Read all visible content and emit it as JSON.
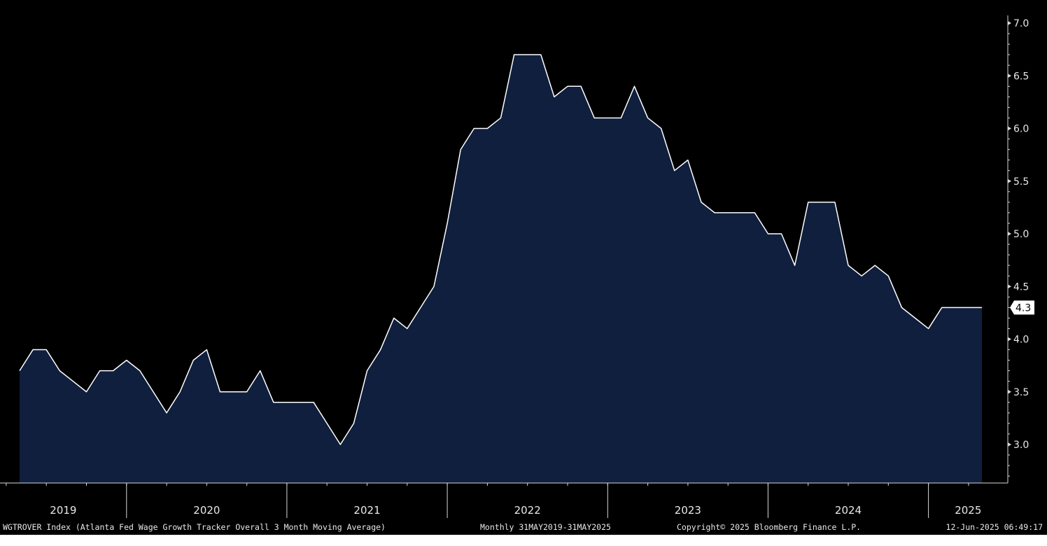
{
  "colors": {
    "background": "#000000",
    "area_fill": "#0f1f3d",
    "line": "#ffffff",
    "axis": "#d8d8d8",
    "text": "#e8e8e8",
    "last_value_tag": "#ffffff"
  },
  "footer": {
    "index_description": "WGTROVER Index (Atlanta Fed Wage Growth Tracker Overall 3 Month Moving Average)",
    "frequency_range": "Monthly 31MAY2019-31MAY2025",
    "copyright": "Copyright© 2025 Bloomberg Finance L.P.",
    "timestamp": "12-Jun-2025 06:49:17"
  },
  "chart_data": {
    "type": "area",
    "x_axis_years": [
      "2019",
      "2020",
      "2021",
      "2022",
      "2023",
      "2024",
      "2025"
    ],
    "x_start": "2019-05",
    "x_end": "2025-05",
    "y_ticks": [
      "7.0",
      "6.5",
      "6.0",
      "5.5",
      "5.0",
      "4.5",
      "4.0",
      "3.5",
      "3.0"
    ],
    "ylim": [
      2.65,
      7.1
    ],
    "last_value_label": "4.3",
    "grid": false,
    "legend": "none",
    "series": [
      {
        "x": [
          "2019-05",
          "2019-06",
          "2019-07",
          "2019-08",
          "2019-09",
          "2019-10",
          "2019-11",
          "2019-12",
          "2020-01",
          "2020-02",
          "2020-03",
          "2020-04",
          "2020-05",
          "2020-06",
          "2020-07",
          "2020-08",
          "2020-09",
          "2020-10",
          "2020-11",
          "2020-12",
          "2021-01",
          "2021-02",
          "2021-03",
          "2021-04",
          "2021-05",
          "2021-06",
          "2021-07",
          "2021-08",
          "2021-09",
          "2021-10",
          "2021-11",
          "2021-12",
          "2022-01",
          "2022-02",
          "2022-03",
          "2022-04",
          "2022-05",
          "2022-06",
          "2022-07",
          "2022-08",
          "2022-09",
          "2022-10",
          "2022-11",
          "2022-12",
          "2023-01",
          "2023-02",
          "2023-03",
          "2023-04",
          "2023-05",
          "2023-06",
          "2023-07",
          "2023-08",
          "2023-09",
          "2023-10",
          "2023-11",
          "2023-12",
          "2024-01",
          "2024-02",
          "2024-03",
          "2024-04",
          "2024-05",
          "2024-06",
          "2024-07",
          "2024-08",
          "2024-09",
          "2024-10",
          "2024-11",
          "2024-12",
          "2025-01",
          "2025-02",
          "2025-03",
          "2025-04",
          "2025-05"
        ],
        "values": [
          3.7,
          3.9,
          3.9,
          3.7,
          3.6,
          3.5,
          3.7,
          3.7,
          3.8,
          3.7,
          3.5,
          3.3,
          3.5,
          3.8,
          3.9,
          3.5,
          3.5,
          3.5,
          3.7,
          3.4,
          3.4,
          3.4,
          3.4,
          3.2,
          3.0,
          3.2,
          3.7,
          3.9,
          4.2,
          4.1,
          4.3,
          4.5,
          5.1,
          5.8,
          6.0,
          6.0,
          6.1,
          6.7,
          6.7,
          6.7,
          6.3,
          6.4,
          6.4,
          6.1,
          6.1,
          6.1,
          6.4,
          6.1,
          6.0,
          5.6,
          5.7,
          5.3,
          5.2,
          5.2,
          5.2,
          5.2,
          5.0,
          5.0,
          4.7,
          5.3,
          5.3,
          5.3,
          4.7,
          4.6,
          4.7,
          4.6,
          4.3,
          4.2,
          4.1,
          4.3,
          4.3,
          4.3,
          4.3
        ]
      }
    ]
  }
}
